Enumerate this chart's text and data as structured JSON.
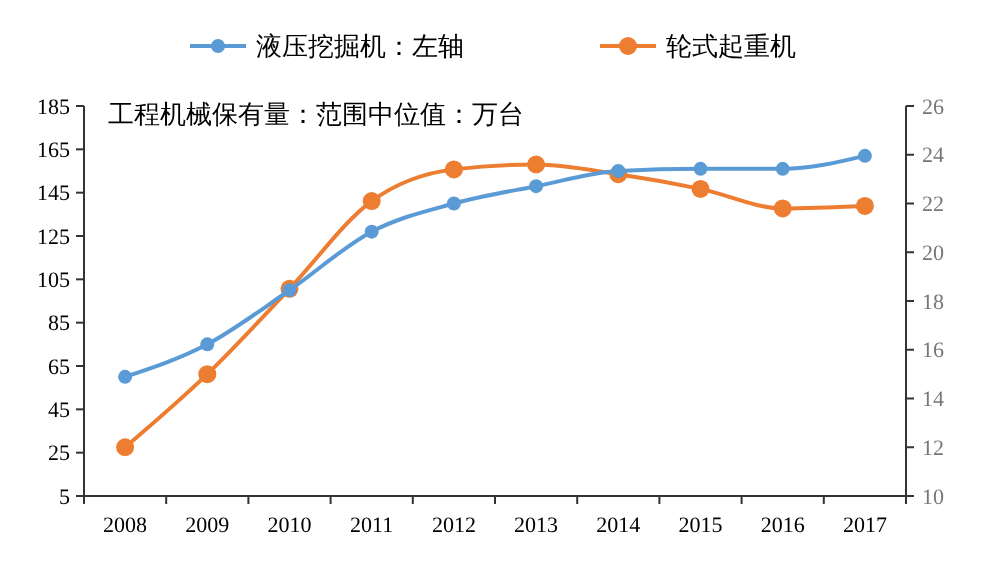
{
  "chart_data": {
    "type": "line",
    "categories": [
      "2008",
      "2009",
      "2010",
      "2011",
      "2012",
      "2013",
      "2014",
      "2015",
      "2016",
      "2017"
    ],
    "series": [
      {
        "name": "液压挖掘机：左轴",
        "color": "#5b9bd5",
        "values": [
          60,
          75,
          100,
          127,
          140,
          148,
          155,
          156,
          156,
          162
        ]
      },
      {
        "name": "轮式起重机",
        "color": "#ed7d31",
        "axis": "y2",
        "values": [
          12,
          15,
          18.5,
          22.1,
          23.4,
          23.6,
          23.2,
          22.6,
          21.8,
          21.9
        ]
      }
    ],
    "ylim": [
      5,
      185
    ],
    "yticks": [
      5,
      25,
      45,
      65,
      85,
      105,
      125,
      145,
      165,
      185
    ],
    "y2lim": [
      10,
      26
    ],
    "y2ticks": [
      10,
      12,
      14,
      16,
      18,
      20,
      22,
      24,
      26
    ],
    "annotations": [
      "工程机械保有量：范围中位值：万台"
    ],
    "legend": "top",
    "marker": "circle",
    "grid": false
  }
}
